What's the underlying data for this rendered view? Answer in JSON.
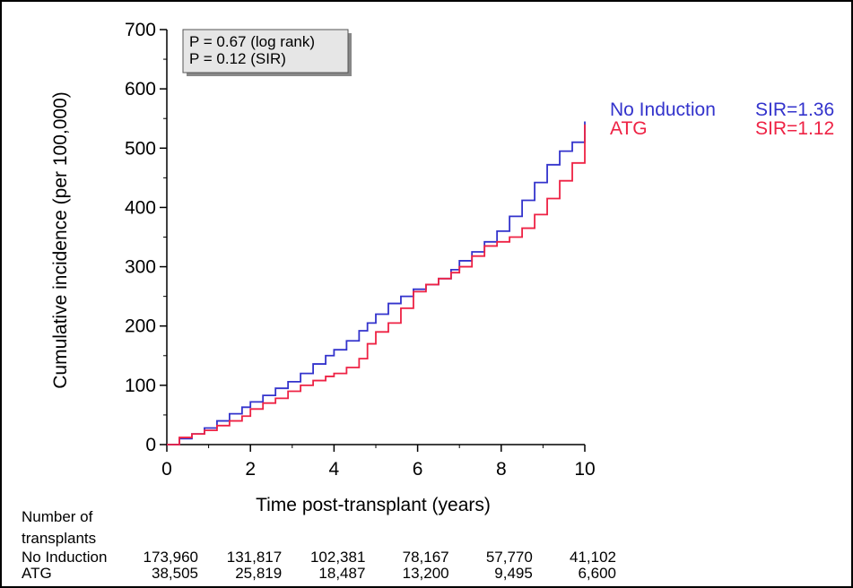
{
  "chart_data": {
    "type": "line",
    "step": true,
    "xlabel": "Time post-transplant (years)",
    "ylabel": "Cumulative incidence (per 100,000)",
    "xlim": [
      0,
      10
    ],
    "ylim": [
      0,
      700
    ],
    "xticks": [
      "0",
      "2",
      "4",
      "6",
      "8",
      "10"
    ],
    "yticks": [
      "0",
      "100",
      "200",
      "300",
      "400",
      "500",
      "600",
      "700"
    ],
    "grid": false,
    "legend_position": "right",
    "annotation": [
      "P = 0.67 (log rank)",
      "P = 0.12 (SIR)"
    ],
    "series": [
      {
        "name": "No Induction",
        "sir_label": "SIR=1.36",
        "color": "#3333cc",
        "x": [
          0,
          0.3,
          0.6,
          0.9,
          1.2,
          1.5,
          1.8,
          2.0,
          2.3,
          2.6,
          2.9,
          3.2,
          3.5,
          3.8,
          4.0,
          4.3,
          4.6,
          4.8,
          5.0,
          5.3,
          5.6,
          5.9,
          6.2,
          6.5,
          6.8,
          7.0,
          7.3,
          7.6,
          7.9,
          8.2,
          8.5,
          8.8,
          9.1,
          9.4,
          9.7,
          10.0
        ],
        "y": [
          0,
          10,
          18,
          28,
          40,
          52,
          63,
          72,
          83,
          95,
          106,
          120,
          136,
          150,
          160,
          175,
          192,
          205,
          220,
          238,
          250,
          262,
          270,
          280,
          295,
          310,
          325,
          342,
          360,
          385,
          412,
          442,
          472,
          495,
          510,
          545
        ]
      },
      {
        "name": "ATG",
        "sir_label": "SIR=1.12",
        "color": "#ee2244",
        "x": [
          0,
          0.3,
          0.6,
          0.9,
          1.2,
          1.5,
          1.8,
          2.0,
          2.3,
          2.6,
          2.9,
          3.2,
          3.5,
          3.8,
          4.0,
          4.3,
          4.6,
          4.8,
          5.0,
          5.3,
          5.6,
          5.9,
          6.2,
          6.5,
          6.8,
          7.0,
          7.3,
          7.6,
          7.9,
          8.2,
          8.5,
          8.8,
          9.1,
          9.4,
          9.7,
          10.0
        ],
        "y": [
          0,
          12,
          18,
          24,
          32,
          40,
          48,
          60,
          70,
          78,
          90,
          100,
          108,
          115,
          120,
          130,
          145,
          170,
          190,
          205,
          230,
          258,
          270,
          280,
          290,
          300,
          318,
          335,
          342,
          350,
          365,
          388,
          415,
          445,
          475,
          540
        ]
      }
    ],
    "risk_table": {
      "title_lines": [
        "Number of",
        "transplants"
      ],
      "rows": [
        {
          "label": "No Induction",
          "values": [
            "173,960",
            "131,817",
            "102,381",
            "78,167",
            "57,770",
            "41,102"
          ]
        },
        {
          "label": "ATG",
          "values": [
            "38,505",
            "25,819",
            "18,487",
            "13,200",
            "9,495",
            "6,600"
          ]
        }
      ]
    }
  }
}
